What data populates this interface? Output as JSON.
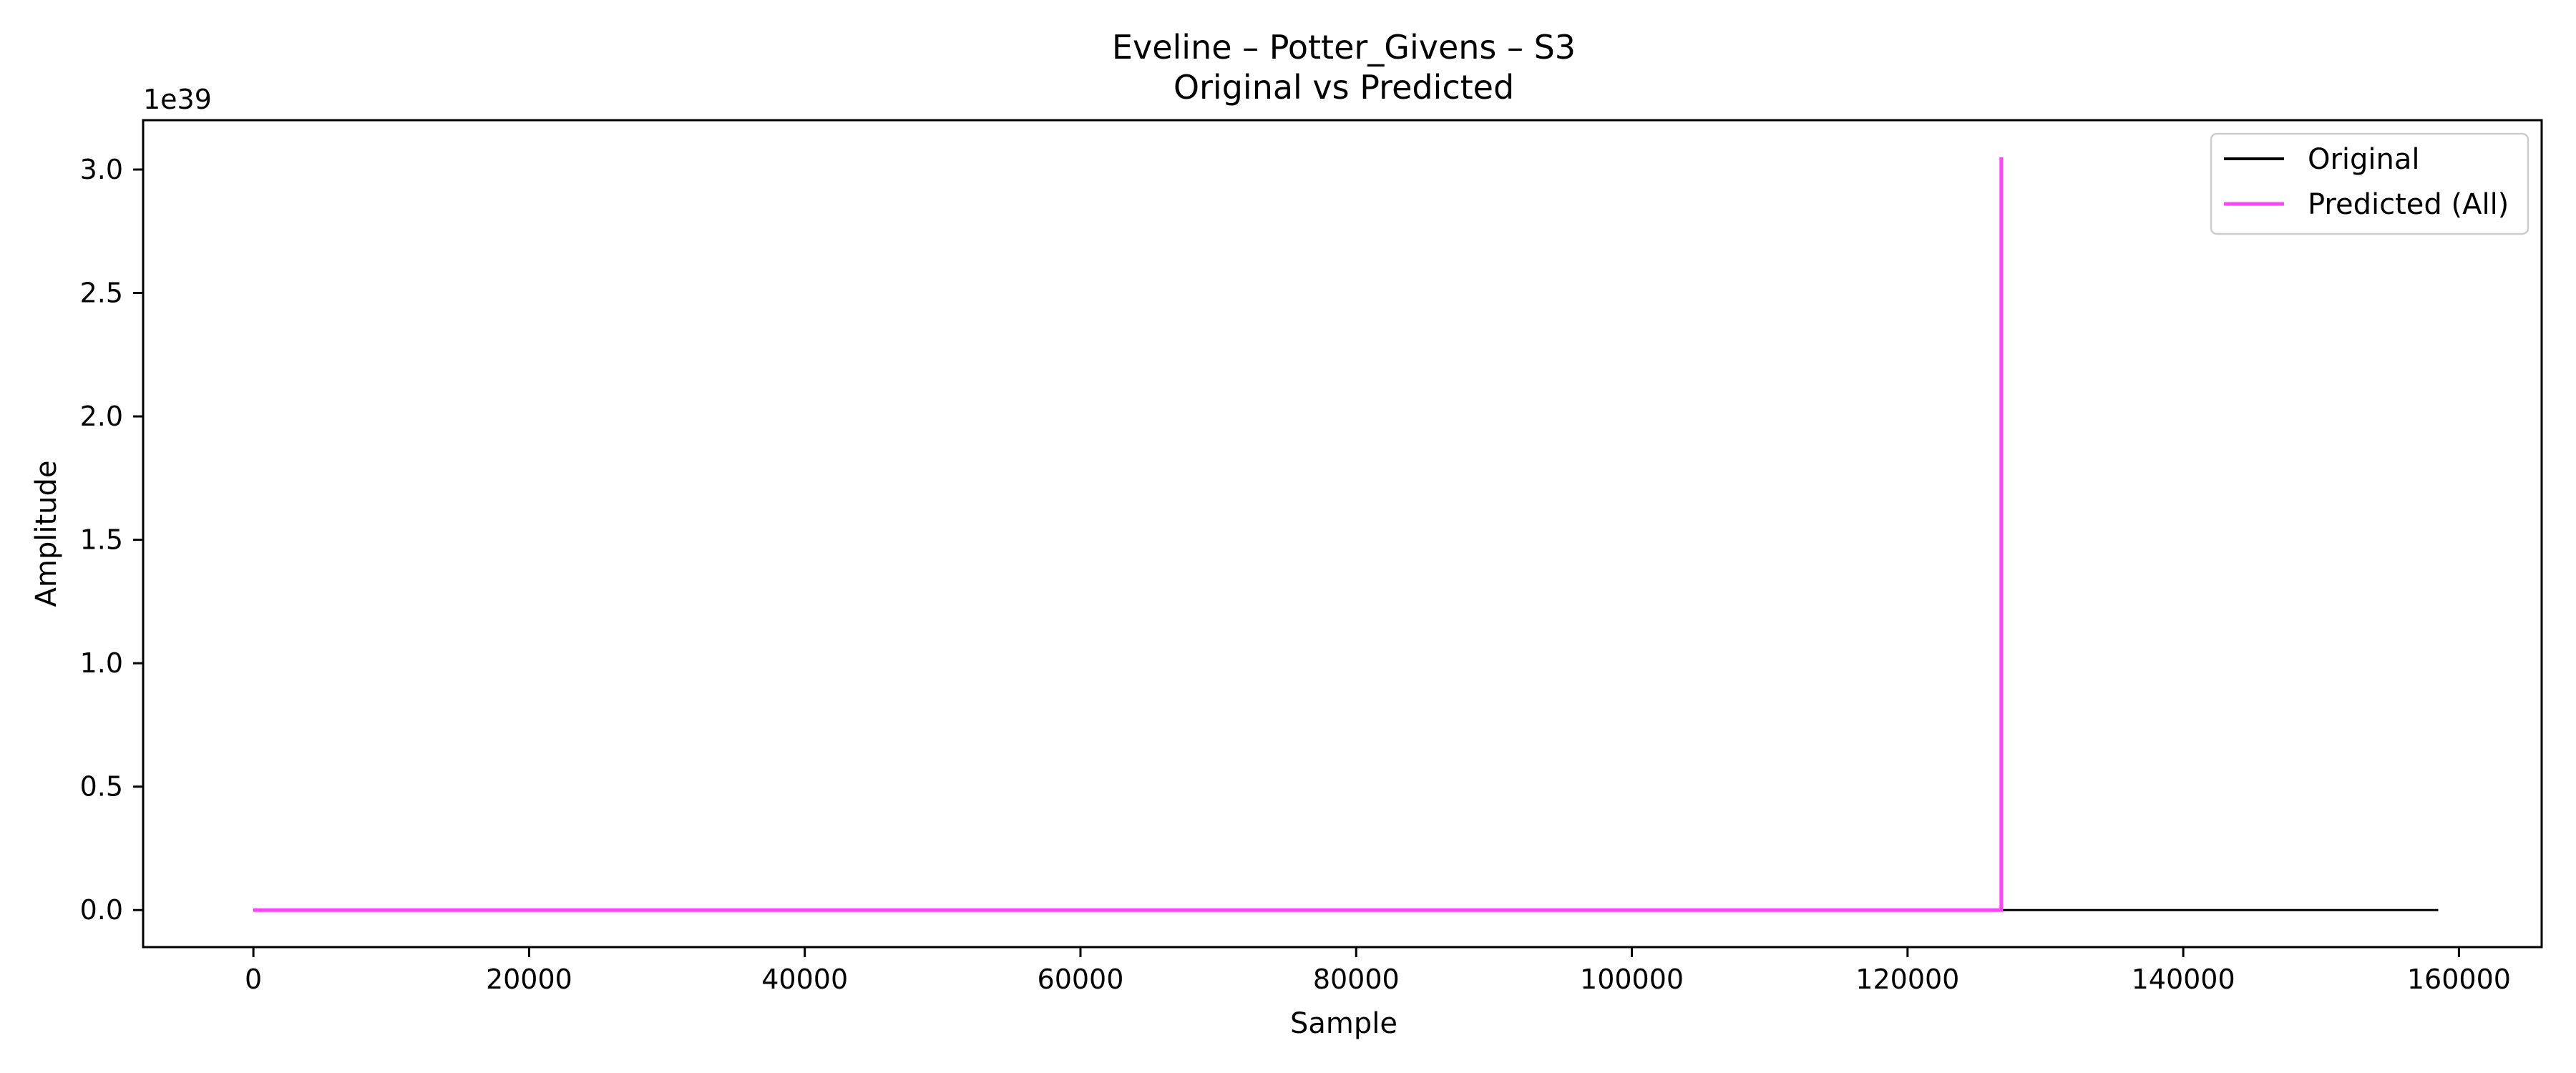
{
  "chart_data": {
    "type": "line",
    "title": "Eveline – Potter_Givens – S3",
    "subtitle": "Original vs Predicted",
    "xlabel": "Sample",
    "ylabel": "Amplitude",
    "y_offset_label": "1e39",
    "y_scale": 1e+39,
    "xlim": [
      -8000,
      166000
    ],
    "ylim": [
      -0.15,
      3.2
    ],
    "x_ticks": [
      0,
      20000,
      40000,
      60000,
      80000,
      100000,
      120000,
      140000,
      160000
    ],
    "y_ticks": [
      0.0,
      0.5,
      1.0,
      1.5,
      2.0,
      2.5,
      3.0
    ],
    "x_tick_labels": [
      "0",
      "20000",
      "40000",
      "60000",
      "80000",
      "100000",
      "120000",
      "140000",
      "160000"
    ],
    "y_tick_labels": [
      "0.0",
      "0.5",
      "1.0",
      "1.5",
      "2.0",
      "2.5",
      "3.0"
    ],
    "grid": false,
    "legend_position": "top-right",
    "series": [
      {
        "name": "Original",
        "color": "#000000",
        "x": [
          0,
          158500
        ],
        "y": [
          0,
          0
        ]
      },
      {
        "name": "Predicted (All)",
        "color": "#ff44ff",
        "x": [
          0,
          126800,
          126800,
          126800
        ],
        "y": [
          0,
          0,
          3.05,
          0
        ]
      }
    ]
  }
}
